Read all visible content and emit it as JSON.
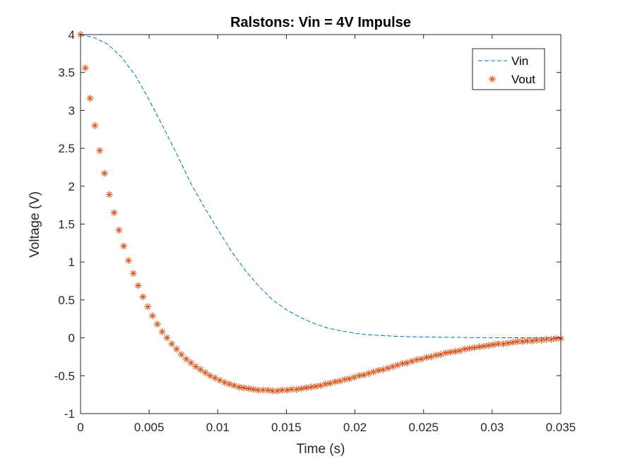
{
  "chart_data": {
    "type": "line",
    "title": "Ralstons: Vin = 4V Impulse",
    "xlabel": "Time (s)",
    "ylabel": "Voltage (V)",
    "xlim": [
      0,
      0.035
    ],
    "ylim": [
      -1,
      4
    ],
    "xticks": [
      "0",
      "0.005",
      "0.01",
      "0.015",
      "0.02",
      "0.025",
      "0.03",
      "0.035"
    ],
    "yticks": [
      "-1",
      "-0.5",
      "0",
      "0.5",
      "1",
      "1.5",
      "2",
      "2.5",
      "3",
      "3.5",
      "4"
    ],
    "grid": false,
    "legend_position": "top-right",
    "series": [
      {
        "name": "Vin",
        "style": "dashed-line",
        "color": "#0072BD",
        "x": [
          0,
          0.001,
          0.002,
          0.003,
          0.004,
          0.005,
          0.006,
          0.007,
          0.008,
          0.009,
          0.01,
          0.011,
          0.012,
          0.013,
          0.014,
          0.015,
          0.016,
          0.017,
          0.018,
          0.019,
          0.02,
          0.021,
          0.022,
          0.023,
          0.024,
          0.025,
          0.026,
          0.027,
          0.028,
          0.029,
          0.03,
          0.031,
          0.032,
          0.033,
          0.034,
          0.035
        ],
        "y": [
          4.0,
          3.96,
          3.87,
          3.7,
          3.46,
          3.14,
          2.79,
          2.43,
          2.05,
          1.73,
          1.43,
          1.14,
          0.89,
          0.68,
          0.5,
          0.37,
          0.27,
          0.19,
          0.13,
          0.09,
          0.06,
          0.04,
          0.03,
          0.02,
          0.015,
          0.01,
          0.008,
          0.006,
          0.004,
          0.003,
          0.002,
          0.001,
          0.001,
          0.0,
          0.0,
          0.0
        ]
      },
      {
        "name": "Vout",
        "style": "asterisk-markers",
        "color": "#D95319",
        "x": [
          0,
          0.00035,
          0.0007,
          0.00105,
          0.0014,
          0.00175,
          0.0021,
          0.00245,
          0.0028,
          0.00315,
          0.0035,
          0.00385,
          0.0042,
          0.00455,
          0.0049,
          0.00525,
          0.0056,
          0.00595,
          0.0063,
          0.00665,
          0.007,
          0.00735,
          0.0077,
          0.00805,
          0.0084,
          0.00875,
          0.0091,
          0.00945,
          0.0098,
          0.01015,
          0.0105,
          0.01085,
          0.0112,
          0.01155,
          0.0119,
          0.01225,
          0.0126,
          0.01295,
          0.0133,
          0.01365,
          0.014,
          0.01435,
          0.0147,
          0.01505,
          0.0154,
          0.01575,
          0.0161,
          0.01645,
          0.0168,
          0.01715,
          0.0175,
          0.01785,
          0.0182,
          0.01855,
          0.0189,
          0.01925,
          0.0196,
          0.01995,
          0.0203,
          0.02065,
          0.021,
          0.02135,
          0.0217,
          0.02205,
          0.0224,
          0.02275,
          0.0231,
          0.02345,
          0.0238,
          0.02415,
          0.0245,
          0.02485,
          0.0252,
          0.02555,
          0.0259,
          0.02625,
          0.0266,
          0.02695,
          0.0273,
          0.02765,
          0.028,
          0.02835,
          0.0287,
          0.02905,
          0.0294,
          0.02975,
          0.0301,
          0.03045,
          0.0308,
          0.03115,
          0.0315,
          0.03185,
          0.0322,
          0.03255,
          0.0329,
          0.03325,
          0.0336,
          0.03395,
          0.0343,
          0.03465,
          0.035
        ],
        "y": [
          4.0,
          3.56,
          3.16,
          2.8,
          2.47,
          2.17,
          1.89,
          1.65,
          1.42,
          1.21,
          1.02,
          0.85,
          0.69,
          0.54,
          0.41,
          0.29,
          0.18,
          0.08,
          0.0,
          -0.08,
          -0.15,
          -0.22,
          -0.28,
          -0.33,
          -0.38,
          -0.42,
          -0.46,
          -0.5,
          -0.53,
          -0.56,
          -0.59,
          -0.61,
          -0.63,
          -0.65,
          -0.66,
          -0.67,
          -0.68,
          -0.69,
          -0.69,
          -0.69,
          -0.7,
          -0.7,
          -0.69,
          -0.69,
          -0.68,
          -0.68,
          -0.67,
          -0.66,
          -0.65,
          -0.64,
          -0.63,
          -0.61,
          -0.6,
          -0.58,
          -0.57,
          -0.55,
          -0.54,
          -0.52,
          -0.5,
          -0.49,
          -0.47,
          -0.45,
          -0.43,
          -0.42,
          -0.4,
          -0.38,
          -0.36,
          -0.34,
          -0.33,
          -0.31,
          -0.29,
          -0.28,
          -0.26,
          -0.25,
          -0.23,
          -0.22,
          -0.2,
          -0.19,
          -0.18,
          -0.17,
          -0.15,
          -0.14,
          -0.13,
          -0.12,
          -0.11,
          -0.1,
          -0.09,
          -0.08,
          -0.08,
          -0.07,
          -0.06,
          -0.05,
          -0.05,
          -0.04,
          -0.04,
          -0.03,
          -0.03,
          -0.02,
          -0.02,
          -0.01,
          -0.01
        ]
      }
    ]
  }
}
